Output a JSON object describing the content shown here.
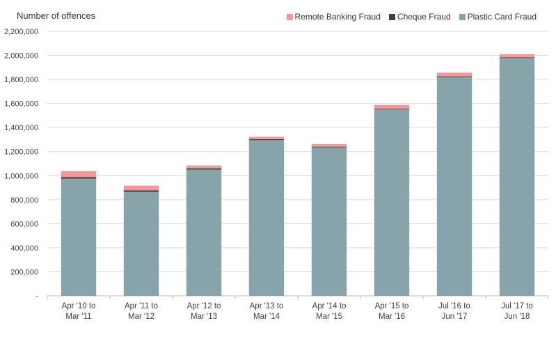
{
  "chart_data": {
    "type": "bar",
    "stacked": true,
    "ylabel": "Number  of offences",
    "xlabel": "",
    "ylim": [
      0,
      2200000
    ],
    "yticks": [
      0,
      200000,
      400000,
      600000,
      800000,
      1000000,
      1200000,
      1400000,
      1600000,
      1800000,
      2000000,
      2200000
    ],
    "ytick_labels": [
      "-",
      "200,000",
      "400,000",
      "600,000",
      "800,000",
      "1,000,000",
      "1,200,000",
      "1,400,000",
      "1,600,000",
      "1,800,000",
      "2,000,000",
      "2,200,000"
    ],
    "grid": true,
    "legend_position": "top-right",
    "categories": [
      [
        "Apr '10 to",
        "Mar '11"
      ],
      [
        "Apr '11 to",
        "Mar '12"
      ],
      [
        "Apr '12 to",
        "Mar '13"
      ],
      [
        "Apr '13 to",
        "Mar '14"
      ],
      [
        "Apr '14 to",
        "Mar '15"
      ],
      [
        "Apr '15 to",
        "Mar '16"
      ],
      [
        "Jul '16 to",
        "Jun '17"
      ],
      [
        "Jul '17 to",
        "Jun '18"
      ]
    ],
    "series": [
      {
        "name": "Plastic Card Fraud",
        "color": "#87a4aa",
        "values": [
          975000,
          865000,
          1050000,
          1295000,
          1235000,
          1550000,
          1820000,
          1978000
        ]
      },
      {
        "name": "Cheque Fraud",
        "color": "#404040",
        "values": [
          12000,
          12000,
          10000,
          8000,
          6000,
          6000,
          6000,
          5000
        ]
      },
      {
        "name": "Remote Banking Fraud",
        "color": "#f4999b",
        "values": [
          50000,
          40000,
          25000,
          20000,
          22000,
          32000,
          30000,
          27000
        ]
      }
    ],
    "legend_order": [
      "Remote Banking Fraud",
      "Cheque Fraud",
      "Plastic Card Fraud"
    ]
  }
}
